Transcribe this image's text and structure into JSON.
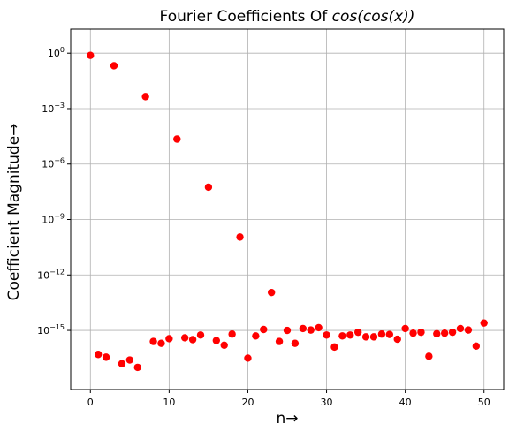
{
  "chart_data": {
    "type": "scatter",
    "title": "Fourier Coefficients Of cos(cos(x))",
    "title_parts": {
      "prefix": "Fourier Coefficients Of ",
      "math": "cos(cos(x))"
    },
    "xlabel": "n→",
    "ylabel": "Coefficient Magnitude→",
    "yscale": "log",
    "grid": true,
    "xlim": [
      -2.5,
      52.5
    ],
    "ylim_log10": [
      -18.2,
      1.3
    ],
    "x_ticks": [
      0,
      10,
      20,
      30,
      40,
      50
    ],
    "x_tick_labels": [
      "0",
      "10",
      "20",
      "30",
      "40",
      "50"
    ],
    "y_ticks_log10": [
      0,
      -3,
      -6,
      -9,
      -12,
      -15
    ],
    "y_tick_labels": [
      {
        "base": "10",
        "exp": "0"
      },
      {
        "base": "10",
        "exp": "−3"
      },
      {
        "base": "10",
        "exp": "−6"
      },
      {
        "base": "10",
        "exp": "−9"
      },
      {
        "base": "10",
        "exp": "−12"
      },
      {
        "base": "10",
        "exp": "−15"
      }
    ],
    "marker_color": "#ff0000",
    "series": [
      {
        "x": [
          0,
          1,
          2,
          3,
          4,
          5,
          6,
          7,
          8,
          9,
          10,
          11,
          12,
          13,
          14,
          15,
          16,
          17,
          18,
          19,
          20,
          21,
          22,
          23,
          24,
          25,
          26,
          27,
          28,
          29,
          30,
          31,
          32,
          33,
          34,
          35,
          36,
          37,
          38,
          39,
          40,
          41,
          42,
          43,
          44,
          45,
          46,
          47,
          48,
          49,
          50
        ],
        "y_log10": [
          -0.12,
          -16.3,
          -16.45,
          -0.68,
          -16.8,
          -16.6,
          -17.0,
          -2.35,
          -15.6,
          -15.7,
          -15.45,
          -4.65,
          -15.4,
          -15.5,
          -15.25,
          -7.25,
          -15.55,
          -15.8,
          -15.2,
          -9.95,
          -16.5,
          -15.3,
          -14.95,
          -12.95,
          -15.6,
          -15.0,
          -15.7,
          -14.9,
          -14.98,
          -14.85,
          -15.25,
          -15.9,
          -15.3,
          -15.25,
          -15.1,
          -15.35,
          -15.35,
          -15.2,
          -15.22,
          -15.48,
          -14.9,
          -15.15,
          -15.1,
          -16.4,
          -15.18,
          -15.15,
          -15.1,
          -14.9,
          -14.98,
          -15.85,
          -14.6
        ]
      }
    ]
  }
}
